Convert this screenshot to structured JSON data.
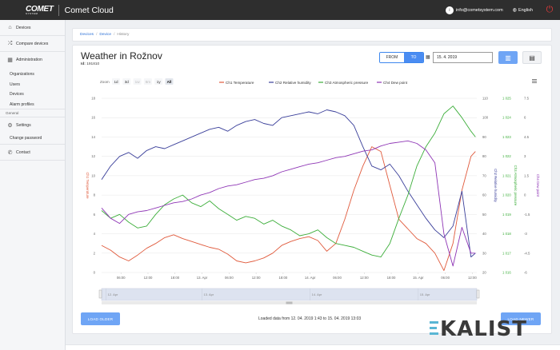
{
  "topbar": {
    "logo": "COMET",
    "logo_sub": "SYSTEM",
    "app_title": "Comet Cloud",
    "user_initial": "i",
    "user_email": "info@cometsystem.com",
    "language": "English"
  },
  "sidebar": {
    "devices": "Devices",
    "compare_devices": "Compare devices",
    "administration": "Administration",
    "admin_items": [
      "Organizations",
      "Users",
      "Devices",
      "Alarm profiles"
    ],
    "general_label": "General",
    "settings": "Settings",
    "change_password": "Change password",
    "contact": "Contact"
  },
  "breadcrumb": {
    "devices": "Devices",
    "device": "Device",
    "current": "History"
  },
  "page": {
    "title": "Weather in Rožnov",
    "id_label": "Id:",
    "id_value": "191810",
    "from_label": "FROM",
    "to_label": "TO",
    "date_value": "15. 4. 2019",
    "load_older": "LOAD OLDER",
    "load_newer": "LOAD NEWER",
    "loaded_text": "Loaded data from 12. 04. 2019 1:43 to 15. 04. 2019 13:03"
  },
  "watermark": "KALIST",
  "chart_data": {
    "type": "line",
    "zoom_label": "Zoom",
    "zoom_options": [
      "1d",
      "3d",
      "1w",
      "6m",
      "1y",
      "All"
    ],
    "zoom_selected": "All",
    "legend_position": "top-center",
    "x_ticks": [
      "06:00",
      "12:00",
      "18:00",
      "13. Apr",
      "06:00",
      "12:00",
      "18:00",
      "14. Apr",
      "06:00",
      "12:00",
      "18:00",
      "15. Apr",
      "06:00",
      "12:00"
    ],
    "x_range": [
      0,
      83.3
    ],
    "x_tick_hours": [
      4.3,
      10.3,
      16.3,
      22.3,
      28.3,
      34.3,
      40.3,
      46.3,
      52.3,
      58.3,
      64.3,
      70.3,
      76.3,
      82.3
    ],
    "navigator_ticks": [
      "12. Apr",
      "13. Apr",
      "14. Apr",
      "15. Apr"
    ],
    "navigator_tick_hours": [
      1,
      22.3,
      46.3,
      70.3
    ],
    "axes": [
      {
        "id": "temp",
        "label": "Ch1 Temperature",
        "side": "left",
        "min": 0,
        "max": 18,
        "ticks": [
          0,
          2,
          4,
          6,
          8,
          10,
          12,
          14,
          16,
          18
        ],
        "color": "#e05a3c"
      },
      {
        "id": "hum",
        "label": "Ch2 Relative humidity",
        "side": "right",
        "min": 20,
        "max": 110,
        "ticks": [
          20,
          30,
          40,
          50,
          60,
          70,
          80,
          90,
          100,
          110
        ],
        "color": "#3a3f9a"
      },
      {
        "id": "press",
        "label": "Ch3 Atmospheric pressure",
        "side": "right",
        "min": 1016,
        "max": 1025,
        "ticks": [
          "1 016",
          "1 017",
          "1 018",
          "1 019",
          "1 020",
          "1 021",
          "1 022",
          "1 023",
          "1 024",
          "1 025"
        ],
        "tick_values": [
          1016,
          1017,
          1018,
          1019,
          1020,
          1021,
          1022,
          1023,
          1024,
          1025
        ],
        "color": "#3cae3a"
      },
      {
        "id": "dew",
        "label": "Ch4 Dew point",
        "side": "right",
        "min": -6,
        "max": 7.5,
        "ticks": [
          "-6",
          "-4.5",
          "-3",
          "-1.5",
          "0",
          "1.5",
          "3",
          "4.5",
          "6",
          "7.5"
        ],
        "tick_values": [
          -6,
          -4.5,
          -3,
          -1.5,
          0,
          1.5,
          3,
          4.5,
          6,
          7.5
        ],
        "color": "#8e35b5"
      }
    ],
    "series": [
      {
        "name": "Ch1 Temperature",
        "axis": "temp",
        "color": "#e05a3c",
        "x": [
          0,
          2,
          4,
          6,
          8,
          10,
          12,
          14,
          16,
          18,
          20,
          22,
          24,
          26,
          28,
          30,
          32,
          34,
          36,
          38,
          40,
          42,
          44,
          46,
          48,
          50,
          52,
          54,
          56,
          58,
          60,
          62,
          64,
          66,
          68,
          70,
          72,
          74,
          76,
          78,
          80,
          82,
          83
        ],
        "y": [
          2.8,
          2.3,
          1.6,
          1.2,
          1.8,
          2.5,
          3.0,
          3.6,
          3.9,
          3.5,
          3.2,
          2.9,
          2.6,
          2.4,
          1.9,
          1.2,
          1.0,
          1.2,
          1.5,
          2.0,
          2.8,
          3.2,
          3.5,
          3.7,
          3.3,
          2.2,
          3.0,
          5.5,
          8.5,
          11.0,
          13.0,
          12.5,
          9.0,
          5.5,
          4.5,
          3.5,
          3.0,
          2.0,
          0.2,
          3.0,
          8.5,
          12.0,
          12.5
        ]
      },
      {
        "name": "Ch2 Relative humidity",
        "axis": "hum",
        "color": "#3a3f9a",
        "x": [
          0,
          2,
          4,
          6,
          8,
          10,
          12,
          14,
          16,
          18,
          20,
          22,
          24,
          26,
          28,
          30,
          32,
          34,
          36,
          38,
          40,
          42,
          44,
          46,
          48,
          50,
          52,
          54,
          56,
          58,
          60,
          62,
          64,
          66,
          68,
          70,
          72,
          74,
          76,
          78,
          80,
          82,
          83
        ],
        "y": [
          68,
          75,
          80,
          82,
          79,
          83,
          85,
          84,
          86,
          88,
          90,
          92,
          94,
          95,
          93,
          96,
          98,
          99,
          97,
          96,
          100,
          101,
          102,
          103,
          102,
          104,
          103,
          101,
          96,
          85,
          75,
          73,
          76,
          70,
          62,
          55,
          48,
          42,
          38,
          44,
          62,
          28,
          30
        ]
      },
      {
        "name": "Ch3 Atmospheric pressure",
        "axis": "press",
        "color": "#3cae3a",
        "x": [
          0,
          2,
          4,
          6,
          8,
          10,
          12,
          14,
          16,
          18,
          20,
          22,
          24,
          26,
          28,
          30,
          32,
          34,
          36,
          38,
          40,
          42,
          44,
          46,
          48,
          50,
          52,
          54,
          56,
          58,
          60,
          62,
          64,
          66,
          68,
          70,
          72,
          74,
          76,
          78,
          80,
          82,
          83
        ],
        "y": [
          1019.2,
          1018.8,
          1019.0,
          1018.6,
          1018.3,
          1018.4,
          1019.0,
          1019.5,
          1019.8,
          1020.0,
          1019.6,
          1019.4,
          1019.7,
          1019.3,
          1019.0,
          1018.7,
          1018.9,
          1018.8,
          1018.5,
          1018.7,
          1018.4,
          1018.2,
          1017.9,
          1018.0,
          1018.2,
          1017.8,
          1017.5,
          1017.4,
          1017.3,
          1017.1,
          1016.9,
          1016.8,
          1017.5,
          1018.8,
          1020.0,
          1021.5,
          1022.5,
          1023.2,
          1024.2,
          1024.6,
          1024.0,
          1023.3,
          1023.0
        ]
      },
      {
        "name": "Ch4 Dew point",
        "axis": "dew",
        "color": "#8e35b5",
        "x": [
          0,
          2,
          4,
          6,
          8,
          10,
          12,
          14,
          16,
          18,
          20,
          22,
          24,
          26,
          28,
          30,
          32,
          34,
          36,
          38,
          40,
          42,
          44,
          46,
          48,
          50,
          52,
          54,
          56,
          58,
          60,
          62,
          64,
          66,
          68,
          70,
          72,
          74,
          76,
          78,
          80,
          82,
          83
        ],
        "y": [
          -1.0,
          -1.8,
          -2.2,
          -1.5,
          -1.3,
          -1.2,
          -1.0,
          -0.8,
          -0.6,
          -0.5,
          -0.3,
          0.0,
          0.2,
          0.5,
          0.7,
          0.8,
          1.0,
          1.2,
          1.3,
          1.5,
          1.8,
          2.0,
          2.2,
          2.4,
          2.5,
          2.7,
          2.9,
          3.0,
          3.2,
          3.4,
          3.5,
          3.8,
          4.0,
          4.1,
          4.2,
          4.0,
          3.5,
          2.5,
          -3.0,
          -5.5,
          -2.5,
          -4.5,
          -4.5
        ]
      }
    ]
  }
}
